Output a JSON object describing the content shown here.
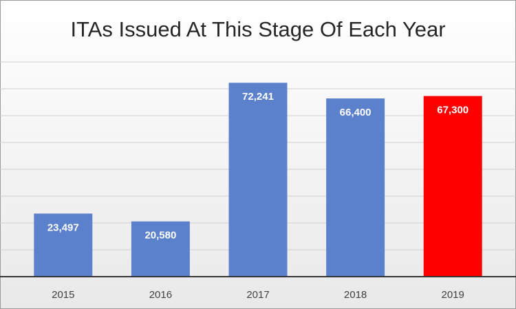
{
  "chart_data": {
    "type": "bar",
    "title": "ITAs Issued At This Stage Of Each Year",
    "categories": [
      "2015",
      "2016",
      "2017",
      "2018",
      "2019"
    ],
    "values": [
      23497,
      20580,
      72241,
      66400,
      67300
    ],
    "value_labels": [
      "23,497",
      "20,580",
      "72,241",
      "66,400",
      "67,300"
    ],
    "colors": [
      "#5b80cc",
      "#5b80cc",
      "#5b80cc",
      "#5b80cc",
      "#ff0000"
    ],
    "ylim": [
      0,
      80000
    ],
    "yticks": [
      0,
      10000,
      20000,
      30000,
      40000,
      50000,
      60000,
      70000,
      80000
    ],
    "grid": true
  }
}
